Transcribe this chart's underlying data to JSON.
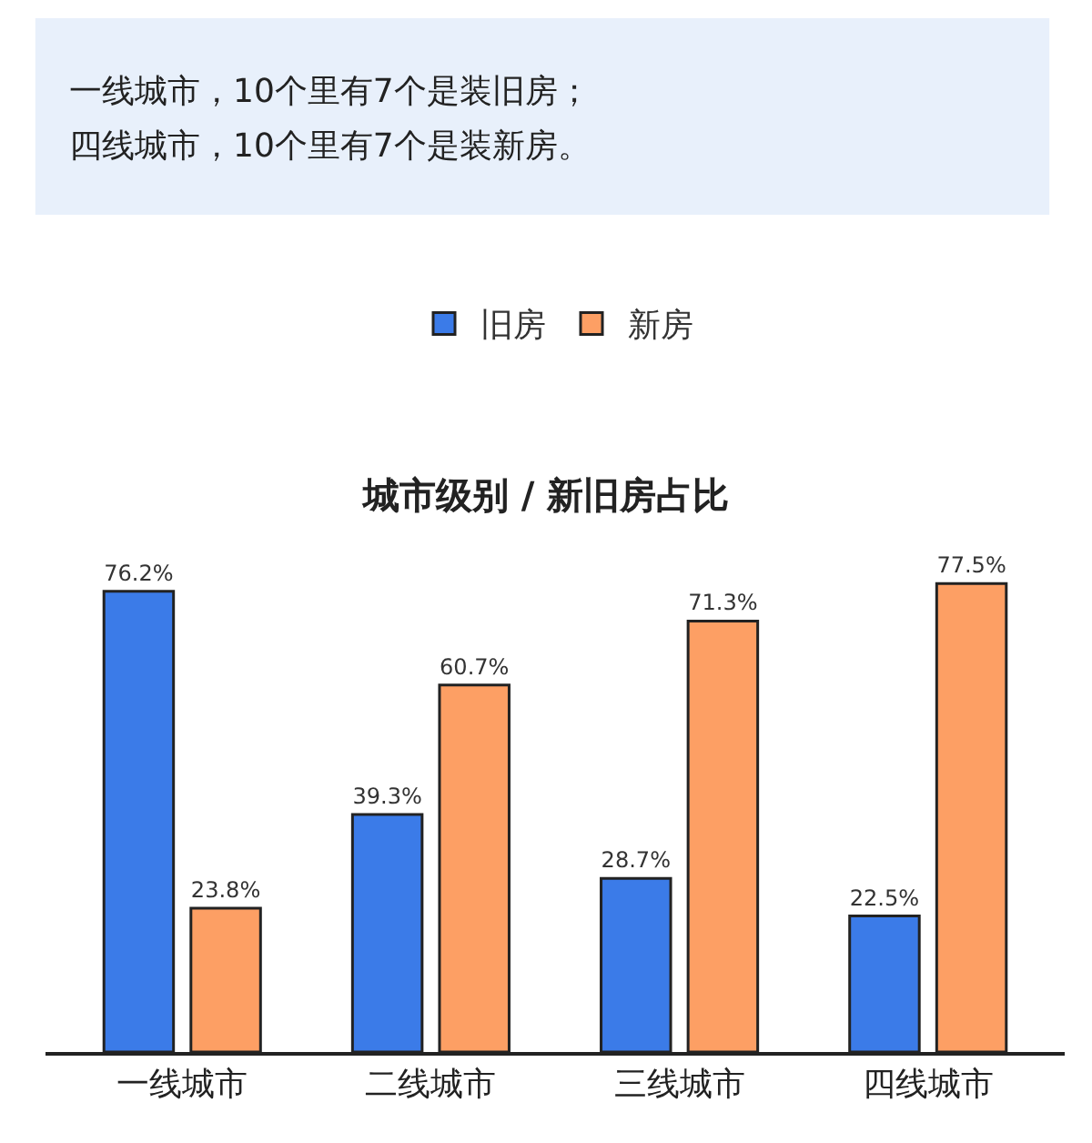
{
  "chart_data": {
    "type": "bar",
    "title": "城市级别 / 新旧房占比",
    "annotations": [
      "一线城市，10个里有7个是装旧房；",
      "四线城市，10个里有7个是装新房。"
    ],
    "categories": [
      "一线城市",
      "二线城市",
      "三线城市",
      "四线城市"
    ],
    "series": [
      {
        "name": "旧房",
        "color": "#3b7be8",
        "values": [
          76.2,
          39.3,
          28.7,
          22.5
        ],
        "value_labels": [
          "76.2%",
          "39.3%",
          "28.7%",
          "22.5%"
        ]
      },
      {
        "name": "新房",
        "color": "#fd9f64",
        "values": [
          23.8,
          60.7,
          71.3,
          77.5
        ],
        "value_labels": [
          "23.8%",
          "60.7%",
          "71.3%",
          "77.5%"
        ]
      }
    ],
    "legend": "top"
  }
}
